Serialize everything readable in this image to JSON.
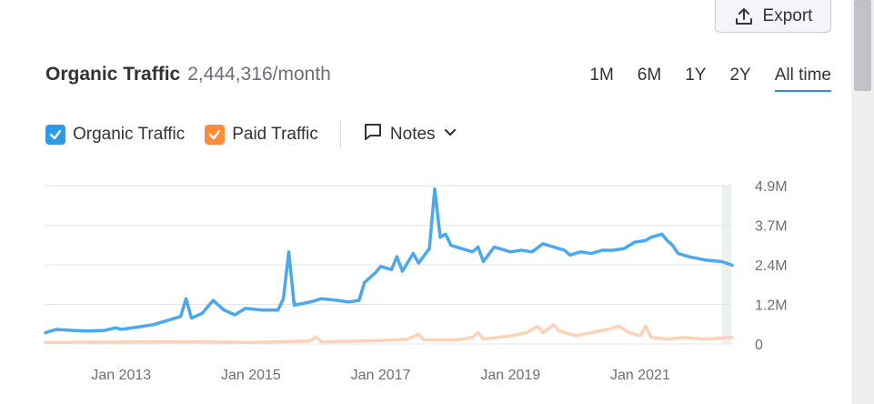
{
  "toolbar": {
    "export_label": "Export",
    "export_icon": "upload-icon"
  },
  "header": {
    "title": "Organic Traffic",
    "value": "2,444,316/month",
    "periods": [
      "1M",
      "6M",
      "1Y",
      "2Y",
      "All time"
    ],
    "active_period": "All time"
  },
  "legend": {
    "items": [
      {
        "label": "Organic Traffic",
        "checked": true,
        "color": "#2b9ae9"
      },
      {
        "label": "Paid Traffic",
        "checked": true,
        "color": "#ff8c3a"
      }
    ],
    "notes_label": "Notes"
  },
  "chart_data": {
    "type": "line",
    "x_start": "2011-11",
    "x_end": "2022-06",
    "xtick_labels": [
      "Jan 2013",
      "Jan 2015",
      "Jan 2017",
      "Jan 2019",
      "Jan 2021"
    ],
    "ytick_labels": [
      "4.9M",
      "3.7M",
      "2.4M",
      "1.2M",
      "0"
    ],
    "ylim": [
      0,
      4.9
    ],
    "grid": true,
    "series": [
      {
        "name": "Organic Traffic",
        "color": "#4ba8ef",
        "points": [
          [
            "2011-11",
            0.35
          ],
          [
            "2012-01",
            0.45
          ],
          [
            "2012-04",
            0.42
          ],
          [
            "2012-07",
            0.4
          ],
          [
            "2012-10",
            0.42
          ],
          [
            "2012-12",
            0.5
          ],
          [
            "2013-01",
            0.45
          ],
          [
            "2013-04",
            0.52
          ],
          [
            "2013-07",
            0.6
          ],
          [
            "2013-10",
            0.75
          ],
          [
            "2013-12",
            0.85
          ],
          [
            "2014-01",
            1.4
          ],
          [
            "2014-02",
            0.8
          ],
          [
            "2014-04",
            0.95
          ],
          [
            "2014-06",
            1.35
          ],
          [
            "2014-08",
            1.05
          ],
          [
            "2014-10",
            0.9
          ],
          [
            "2014-12",
            1.1
          ],
          [
            "2015-03",
            1.05
          ],
          [
            "2015-06",
            1.05
          ],
          [
            "2015-07",
            1.4
          ],
          [
            "2015-08",
            2.85
          ],
          [
            "2015-09",
            1.2
          ],
          [
            "2015-12",
            1.3
          ],
          [
            "2016-02",
            1.4
          ],
          [
            "2016-05",
            1.35
          ],
          [
            "2016-07",
            1.3
          ],
          [
            "2016-09",
            1.35
          ],
          [
            "2016-10",
            1.9
          ],
          [
            "2016-12",
            2.2
          ],
          [
            "2017-01",
            2.4
          ],
          [
            "2017-03",
            2.3
          ],
          [
            "2017-04",
            2.7
          ],
          [
            "2017-05",
            2.25
          ],
          [
            "2017-07",
            2.8
          ],
          [
            "2017-08",
            2.5
          ],
          [
            "2017-10",
            2.95
          ],
          [
            "2017-11",
            4.8
          ],
          [
            "2017-12",
            3.3
          ],
          [
            "2018-01",
            3.4
          ],
          [
            "2018-02",
            3.05
          ],
          [
            "2018-06",
            2.85
          ],
          [
            "2018-07",
            3.0
          ],
          [
            "2018-08",
            2.55
          ],
          [
            "2018-10",
            3.0
          ],
          [
            "2018-12",
            2.9
          ],
          [
            "2019-01",
            2.85
          ],
          [
            "2019-03",
            2.9
          ],
          [
            "2019-05",
            2.85
          ],
          [
            "2019-07",
            3.1
          ],
          [
            "2019-08",
            3.05
          ],
          [
            "2019-11",
            2.9
          ],
          [
            "2019-12",
            2.75
          ],
          [
            "2020-02",
            2.85
          ],
          [
            "2020-04",
            2.8
          ],
          [
            "2020-06",
            2.9
          ],
          [
            "2020-08",
            2.9
          ],
          [
            "2020-10",
            2.95
          ],
          [
            "2020-12",
            3.15
          ],
          [
            "2021-02",
            3.2
          ],
          [
            "2021-03",
            3.3
          ],
          [
            "2021-05",
            3.4
          ],
          [
            "2021-06",
            3.2
          ],
          [
            "2021-07",
            3.05
          ],
          [
            "2021-08",
            2.8
          ],
          [
            "2021-10",
            2.7
          ],
          [
            "2022-01",
            2.6
          ],
          [
            "2022-04",
            2.55
          ],
          [
            "2022-06",
            2.44
          ]
        ]
      },
      {
        "name": "Paid Traffic",
        "color": "#fcd3b8",
        "points": [
          [
            "2011-11",
            0.05
          ],
          [
            "2013-01",
            0.06
          ],
          [
            "2014-01",
            0.07
          ],
          [
            "2015-01",
            0.05
          ],
          [
            "2015-12",
            0.09
          ],
          [
            "2016-01",
            0.22
          ],
          [
            "2016-02",
            0.07
          ],
          [
            "2016-06",
            0.08
          ],
          [
            "2016-12",
            0.1
          ],
          [
            "2017-03",
            0.12
          ],
          [
            "2017-06",
            0.15
          ],
          [
            "2017-08",
            0.3
          ],
          [
            "2017-09",
            0.13
          ],
          [
            "2018-03",
            0.12
          ],
          [
            "2018-06",
            0.2
          ],
          [
            "2018-07",
            0.35
          ],
          [
            "2018-08",
            0.15
          ],
          [
            "2019-01",
            0.25
          ],
          [
            "2019-04",
            0.35
          ],
          [
            "2019-06",
            0.55
          ],
          [
            "2019-07",
            0.35
          ],
          [
            "2019-09",
            0.6
          ],
          [
            "2019-10",
            0.4
          ],
          [
            "2020-01",
            0.25
          ],
          [
            "2020-04",
            0.35
          ],
          [
            "2020-07",
            0.45
          ],
          [
            "2020-09",
            0.55
          ],
          [
            "2020-11",
            0.35
          ],
          [
            "2021-01",
            0.25
          ],
          [
            "2021-02",
            0.55
          ],
          [
            "2021-03",
            0.2
          ],
          [
            "2021-06",
            0.15
          ],
          [
            "2021-09",
            0.2
          ],
          [
            "2022-01",
            0.15
          ],
          [
            "2022-06",
            0.2
          ]
        ]
      }
    ]
  }
}
